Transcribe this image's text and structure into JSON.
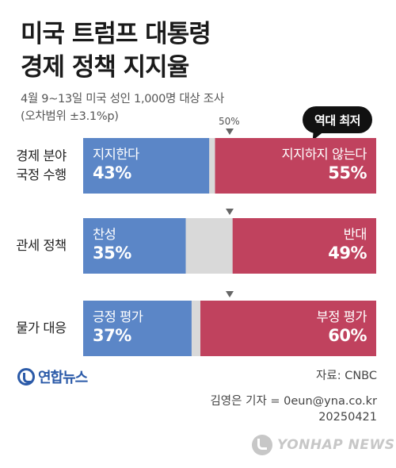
{
  "header": {
    "title_line1": "미국 트럼프 대통령",
    "title_line2": "경제 정책 지지율",
    "survey_line1": "4월 9~13일 미국 성인 1,000명 대상 조사",
    "survey_line2": "(오차범위 ±3.1%p)",
    "midpoint_label": "50%",
    "record_badge": "역대 최저"
  },
  "chart_data": {
    "type": "bar",
    "stacked": true,
    "orientation": "horizontal",
    "xlim": [
      0,
      100
    ],
    "midpoint": 50,
    "colors": {
      "positive": "#5b86c7",
      "negative": "#c0425e",
      "neutral": "#d9d9d9"
    },
    "rows": [
      {
        "label_line1": "경제 분야",
        "label_line2": "국정 수행",
        "positive_label": "지지한다",
        "positive": 43,
        "positive_text": "43%",
        "negative_label": "지지하지 않는다",
        "negative": 55,
        "negative_text": "55%"
      },
      {
        "label_line1": "관세 정책",
        "label_line2": "",
        "positive_label": "찬성",
        "positive": 35,
        "positive_text": "35%",
        "negative_label": "반대",
        "negative": 49,
        "negative_text": "49%"
      },
      {
        "label_line1": "물가 대응",
        "label_line2": "",
        "positive_label": "긍정 평가",
        "positive": 37,
        "positive_text": "37%",
        "negative_label": "부정 평가",
        "negative": 60,
        "negative_text": "60%"
      }
    ]
  },
  "footer": {
    "logo_text": "연합뉴스",
    "source": "자료: CNBC",
    "credit_line1": "김영은 기자 = 0eun@yna.co.kr",
    "credit_line2": "20250421",
    "watermark": "YONHAP NEWS"
  }
}
